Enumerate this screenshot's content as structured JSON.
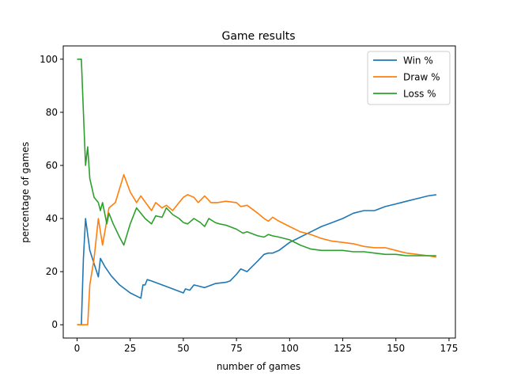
{
  "chart_data": {
    "type": "line",
    "title": "Game results",
    "xlabel": "number of games",
    "ylabel": "percentage of games",
    "xlim": [
      -6.5,
      178
    ],
    "ylim": [
      -5,
      105
    ],
    "xticks": [
      0,
      25,
      50,
      75,
      100,
      125,
      150,
      175
    ],
    "yticks": [
      0,
      20,
      40,
      60,
      80,
      100
    ],
    "grid": false,
    "legend_position": "top-right",
    "series": [
      {
        "name": "Win %",
        "color": "#1f77b4",
        "points": [
          [
            0,
            0
          ],
          [
            2,
            0
          ],
          [
            3,
            25
          ],
          [
            4,
            40
          ],
          [
            6,
            28
          ],
          [
            8,
            23
          ],
          [
            10,
            18
          ],
          [
            11,
            25
          ],
          [
            13,
            22
          ],
          [
            16,
            18.5
          ],
          [
            20,
            15
          ],
          [
            25,
            12
          ],
          [
            30,
            10
          ],
          [
            31,
            15
          ],
          [
            32,
            15
          ],
          [
            33,
            17
          ],
          [
            35,
            16.5
          ],
          [
            40,
            15
          ],
          [
            45,
            13.5
          ],
          [
            50,
            12
          ],
          [
            51,
            13.5
          ],
          [
            53,
            13
          ],
          [
            55,
            15
          ],
          [
            60,
            14
          ],
          [
            65,
            15.5
          ],
          [
            70,
            16
          ],
          [
            72,
            16.5
          ],
          [
            75,
            19
          ],
          [
            77,
            21
          ],
          [
            80,
            20
          ],
          [
            85,
            24
          ],
          [
            88,
            26.5
          ],
          [
            90,
            27
          ],
          [
            92,
            27
          ],
          [
            95,
            28
          ],
          [
            100,
            31
          ],
          [
            105,
            33
          ],
          [
            110,
            35
          ],
          [
            115,
            37
          ],
          [
            120,
            38.5
          ],
          [
            125,
            40
          ],
          [
            130,
            42
          ],
          [
            135,
            43
          ],
          [
            140,
            43
          ],
          [
            145,
            44.5
          ],
          [
            150,
            45.5
          ],
          [
            155,
            46.5
          ],
          [
            160,
            47.5
          ],
          [
            165,
            48.5
          ],
          [
            169,
            49
          ]
        ]
      },
      {
        "name": "Draw %",
        "color": "#ff7f0e",
        "points": [
          [
            0,
            0
          ],
          [
            2,
            0
          ],
          [
            5,
            0
          ],
          [
            6,
            15
          ],
          [
            8,
            25
          ],
          [
            10,
            40
          ],
          [
            12,
            30
          ],
          [
            15,
            44
          ],
          [
            18,
            46
          ],
          [
            22,
            56.5
          ],
          [
            25,
            50
          ],
          [
            28,
            46
          ],
          [
            30,
            48.5
          ],
          [
            35,
            43
          ],
          [
            37,
            46
          ],
          [
            40,
            44
          ],
          [
            42,
            45
          ],
          [
            45,
            43
          ],
          [
            48,
            46
          ],
          [
            50,
            48
          ],
          [
            52,
            49
          ],
          [
            55,
            48
          ],
          [
            57,
            46
          ],
          [
            60,
            48.5
          ],
          [
            63,
            46
          ],
          [
            66,
            46
          ],
          [
            70,
            46.5
          ],
          [
            75,
            46
          ],
          [
            77,
            44.5
          ],
          [
            80,
            45
          ],
          [
            85,
            42
          ],
          [
            88,
            40
          ],
          [
            90,
            39
          ],
          [
            92,
            40.5
          ],
          [
            95,
            39
          ],
          [
            100,
            37
          ],
          [
            105,
            35
          ],
          [
            110,
            34
          ],
          [
            115,
            32.5
          ],
          [
            120,
            31.5
          ],
          [
            125,
            31
          ],
          [
            130,
            30.5
          ],
          [
            135,
            29.5
          ],
          [
            140,
            29
          ],
          [
            145,
            29
          ],
          [
            150,
            28
          ],
          [
            155,
            27
          ],
          [
            160,
            26.5
          ],
          [
            165,
            26
          ],
          [
            169,
            25.5
          ]
        ]
      },
      {
        "name": "Loss %",
        "color": "#2ca02c",
        "points": [
          [
            0,
            100
          ],
          [
            2,
            100
          ],
          [
            3,
            80
          ],
          [
            4,
            60
          ],
          [
            5,
            67
          ],
          [
            6,
            55
          ],
          [
            8,
            48
          ],
          [
            10,
            46
          ],
          [
            11,
            43
          ],
          [
            12,
            46
          ],
          [
            14,
            38
          ],
          [
            15,
            42
          ],
          [
            17,
            38
          ],
          [
            20,
            33
          ],
          [
            22,
            30
          ],
          [
            25,
            38
          ],
          [
            28,
            44
          ],
          [
            30,
            42
          ],
          [
            32,
            40
          ],
          [
            35,
            38
          ],
          [
            37,
            41
          ],
          [
            40,
            40.5
          ],
          [
            42,
            44
          ],
          [
            45,
            41.5
          ],
          [
            48,
            40
          ],
          [
            50,
            38.5
          ],
          [
            52,
            38
          ],
          [
            55,
            40
          ],
          [
            58,
            38.5
          ],
          [
            60,
            37
          ],
          [
            62,
            40
          ],
          [
            65,
            38.5
          ],
          [
            67,
            38
          ],
          [
            70,
            37.5
          ],
          [
            75,
            36
          ],
          [
            78,
            34.5
          ],
          [
            80,
            35
          ],
          [
            85,
            33.5
          ],
          [
            88,
            33
          ],
          [
            90,
            34
          ],
          [
            92,
            33.5
          ],
          [
            95,
            33
          ],
          [
            100,
            32
          ],
          [
            105,
            30
          ],
          [
            110,
            28.5
          ],
          [
            115,
            28
          ],
          [
            120,
            28
          ],
          [
            125,
            28
          ],
          [
            130,
            27.5
          ],
          [
            135,
            27.5
          ],
          [
            140,
            27
          ],
          [
            145,
            26.5
          ],
          [
            150,
            26.5
          ],
          [
            155,
            26
          ],
          [
            160,
            26
          ],
          [
            165,
            26
          ],
          [
            169,
            26
          ]
        ]
      }
    ]
  }
}
